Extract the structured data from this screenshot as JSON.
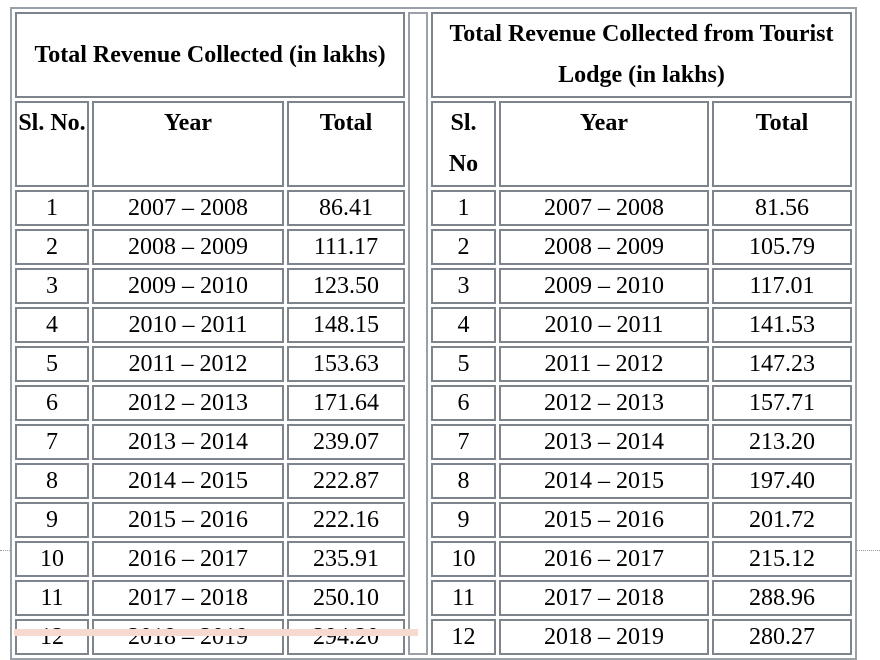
{
  "left_table": {
    "title": "Total Revenue Collected (in lakhs)",
    "col_headers": [
      "Sl. No.",
      "Year",
      "Total"
    ],
    "rows": [
      [
        "1",
        "2007 – 2008",
        "86.41"
      ],
      [
        "2",
        "2008 – 2009",
        "111.17"
      ],
      [
        "3",
        "2009 – 2010",
        "123.50"
      ],
      [
        "4",
        "2010 – 2011",
        "148.15"
      ],
      [
        "5",
        "2011 – 2012",
        "153.63"
      ],
      [
        "6",
        "2012 – 2013",
        "171.64"
      ],
      [
        "7",
        "2013 – 2014",
        "239.07"
      ],
      [
        "8",
        "2014 – 2015",
        "222.87"
      ],
      [
        "9",
        "2015 – 2016",
        "222.16"
      ],
      [
        "10",
        "2016 – 2017",
        "235.91"
      ],
      [
        "11",
        "2017 – 2018",
        "250.10"
      ],
      [
        "12",
        "2018 – 2019",
        "294.20"
      ]
    ]
  },
  "right_table": {
    "title": "Total Revenue Collected from Tourist Lodge (in lakhs)",
    "col_headers": [
      "Sl. No",
      "Year",
      "Total"
    ],
    "rows": [
      [
        "1",
        "2007 – 2008",
        "81.56"
      ],
      [
        "2",
        "2008 – 2009",
        "105.79"
      ],
      [
        "3",
        "2009 – 2010",
        "117.01"
      ],
      [
        "4",
        "2010 – 2011",
        "141.53"
      ],
      [
        "5",
        "2011 – 2012",
        "147.23"
      ],
      [
        "6",
        "2012 – 2013",
        "157.71"
      ],
      [
        "7",
        "2013 – 2014",
        "213.20"
      ],
      [
        "8",
        "2014 – 2015",
        "197.40"
      ],
      [
        "9",
        "2015 – 2016",
        "201.72"
      ],
      [
        "10",
        "2016 – 2017",
        "215.12"
      ],
      [
        "11",
        "2017 – 2018",
        "288.96"
      ],
      [
        "12",
        "2018 – 2019",
        "280.27"
      ]
    ]
  }
}
